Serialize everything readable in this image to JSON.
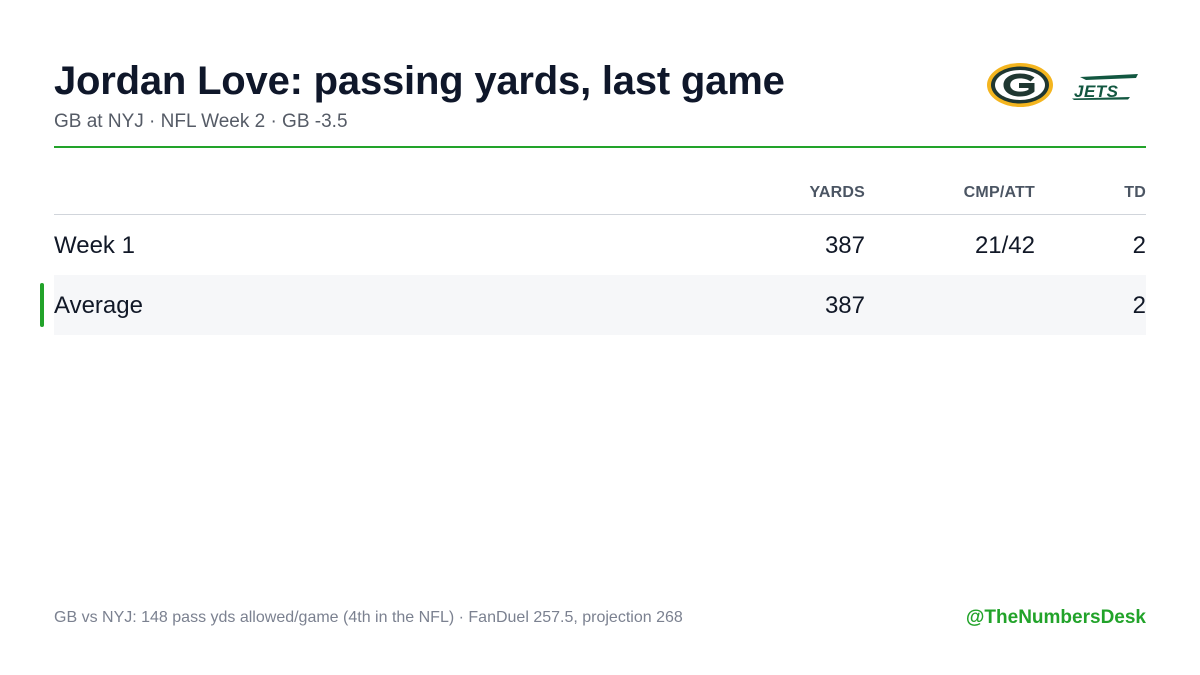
{
  "header": {
    "title": "Jordan Love: passing yards, last game",
    "subtitle": "GB at NYJ · NFL Week 2 · GB -3.5"
  },
  "logos": {
    "home_team": "Green Bay Packers logo",
    "away_team": "New York Jets logo",
    "gb_colors": {
      "green": "#1f3731",
      "gold": "#f4b51f"
    },
    "jets_color": "#125740",
    "jets_wordmark": "JETS"
  },
  "table": {
    "columns": [
      "YARDS",
      "CMP/ATT",
      "TD"
    ],
    "rows": [
      {
        "label": "Week 1",
        "yards": "387",
        "cmp_att": "21/42",
        "td": "2"
      }
    ],
    "average": {
      "label": "Average",
      "yards": "387",
      "cmp_att": "",
      "td": "2"
    }
  },
  "footer": {
    "note": "GB vs NYJ: 148 pass yds allowed/game (4th in the NFL) · FanDuel 257.5, projection 268",
    "handle": "@TheNumbersDesk"
  },
  "colors": {
    "accent": "#22a32a",
    "title": "#0f172a",
    "muted": "#555b66",
    "row_highlight": "#f6f7f9"
  }
}
